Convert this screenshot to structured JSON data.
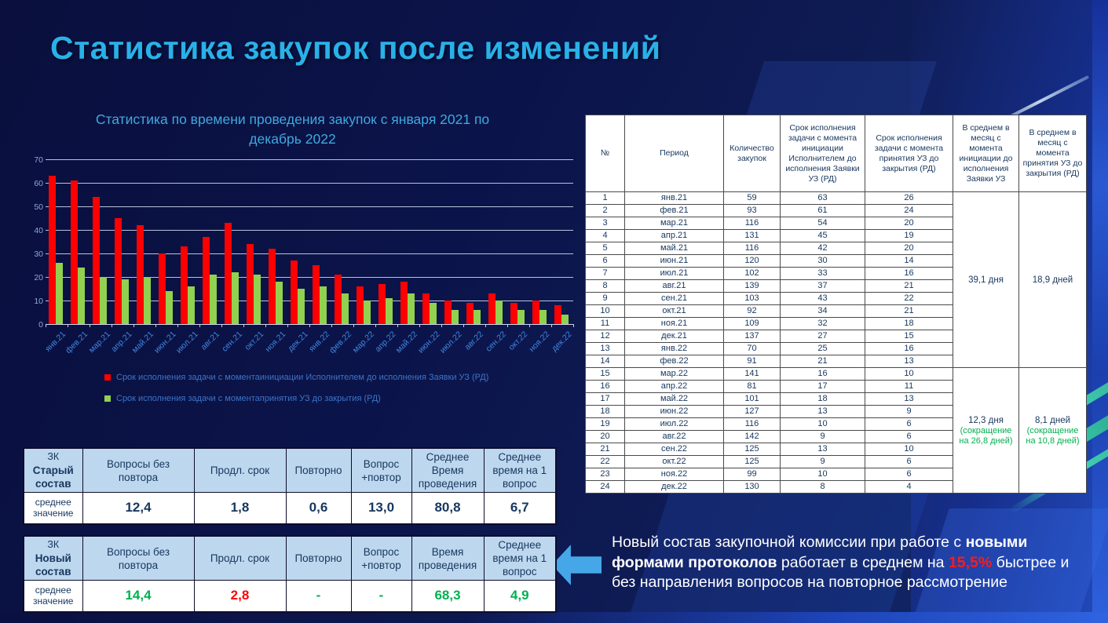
{
  "title": "Статистика закупок после изменений",
  "chart_data": {
    "type": "bar",
    "title": "Статистика по времени проведения закупок с января 2021 по декабрь 2022",
    "categories": [
      "янв.21",
      "фев.21",
      "мар.21",
      "апр.21",
      "май.21",
      "июн.21",
      "июл.21",
      "авг.21",
      "сен.21",
      "окт.21",
      "ноя.21",
      "дек.21",
      "янв.22",
      "фев.22",
      "мар.22",
      "апр.22",
      "май.22",
      "июн.22",
      "июл.22",
      "авг.22",
      "сен.22",
      "окт.22",
      "ноя.22",
      "дек.22"
    ],
    "series": [
      {
        "name": "Срок исполнения задачи с моментаинициации Исполнителем до исполнения Заявки УЗ (РД)",
        "color": "#FF0000",
        "values": [
          63,
          61,
          54,
          45,
          42,
          30,
          33,
          37,
          43,
          34,
          32,
          27,
          25,
          21,
          16,
          17,
          18,
          13,
          10,
          9,
          13,
          9,
          10,
          8
        ]
      },
      {
        "name": "Срок исполнения задачи с моментапринятия УЗ до закрытия (РД)",
        "color": "#92D050",
        "values": [
          26,
          24,
          20,
          19,
          20,
          14,
          16,
          21,
          22,
          21,
          18,
          15,
          16,
          13,
          10,
          11,
          13,
          9,
          6,
          6,
          10,
          6,
          6,
          4
        ]
      }
    ],
    "ylim": [
      0,
      70
    ],
    "yticks": [
      0,
      10,
      20,
      30,
      40,
      50,
      60,
      70
    ],
    "grid": true,
    "legend_position": "bottom"
  },
  "big_table": {
    "headers": [
      "№",
      "Период",
      "Количество закупок",
      "Срок исполнения задачи с момента инициации Исполнителем до исполнения Заявки УЗ (РД)",
      "Срок исполнения задачи с момента принятия УЗ до закрытия (РД)",
      "В среднем в месяц с момента инициации до исполнения Заявки УЗ",
      "В среднем в месяц с момента принятия УЗ до закрытия (РД)"
    ],
    "rows": [
      [
        1,
        "янв.21",
        59,
        63,
        26
      ],
      [
        2,
        "фев.21",
        93,
        61,
        24
      ],
      [
        3,
        "мар.21",
        116,
        54,
        20
      ],
      [
        4,
        "апр.21",
        131,
        45,
        19
      ],
      [
        5,
        "май.21",
        116,
        42,
        20
      ],
      [
        6,
        "июн.21",
        120,
        30,
        14
      ],
      [
        7,
        "июл.21",
        102,
        33,
        16
      ],
      [
        8,
        "авг.21",
        139,
        37,
        21
      ],
      [
        9,
        "сен.21",
        103,
        43,
        22
      ],
      [
        10,
        "окт.21",
        92,
        34,
        21
      ],
      [
        11,
        "ноя.21",
        109,
        32,
        18
      ],
      [
        12,
        "дек.21",
        137,
        27,
        15
      ],
      [
        13,
        "янв.22",
        70,
        25,
        16
      ],
      [
        14,
        "фев.22",
        91,
        21,
        13
      ],
      [
        15,
        "мар.22",
        141,
        16,
        10
      ],
      [
        16,
        "апр.22",
        81,
        17,
        11
      ],
      [
        17,
        "май.22",
        101,
        18,
        13
      ],
      [
        18,
        "июн.22",
        127,
        13,
        9
      ],
      [
        19,
        "июл.22",
        116,
        10,
        6
      ],
      [
        20,
        "авг.22",
        142,
        9,
        6
      ],
      [
        21,
        "сен.22",
        125,
        13,
        10
      ],
      [
        22,
        "окт.22",
        125,
        9,
        6
      ],
      [
        23,
        "ноя.22",
        99,
        10,
        6
      ],
      [
        24,
        "дек.22",
        130,
        8,
        4
      ]
    ],
    "merged": [
      {
        "start_row": 1,
        "span": 14,
        "avg_init": "39,1 дня",
        "note_init": "",
        "avg_accept": "18,9 дней",
        "note_accept": ""
      },
      {
        "start_row": 15,
        "span": 10,
        "avg_init": "12,3 дня",
        "note_init": "(сокращение на 26,8 дней)",
        "avg_accept": "8,1 дней",
        "note_accept": "(сокращение на 10,8 дней)"
      }
    ]
  },
  "summary_tables": [
    {
      "corner": [
        "ЗК",
        "Старый",
        "состав"
      ],
      "headers": [
        "Вопросы без повтора",
        "Продл. срок",
        "Повторно",
        "Вопрос +повтор",
        "Среднее Время проведения",
        "Среднее время на 1 вопрос"
      ],
      "row_label": "среднее значение",
      "values": [
        {
          "text": "12,4",
          "color": "navy"
        },
        {
          "text": "1,8",
          "color": "navy"
        },
        {
          "text": "0,6",
          "color": "navy"
        },
        {
          "text": "13,0",
          "color": "navy"
        },
        {
          "text": "80,8",
          "color": "navy"
        },
        {
          "text": "6,7",
          "color": "navy"
        }
      ]
    },
    {
      "corner": [
        "ЗК",
        "Новый",
        "состав"
      ],
      "headers": [
        "Вопросы без повтора",
        "Продл. срок",
        "Повторно",
        "Вопрос +повтор",
        "Время проведения",
        "Среднее время на 1 вопрос"
      ],
      "row_label": "среднее значение",
      "values": [
        {
          "text": "14,4",
          "color": "green"
        },
        {
          "text": "2,8",
          "color": "red"
        },
        {
          "text": "-",
          "color": "green"
        },
        {
          "text": "-",
          "color": "green"
        },
        {
          "text": "68,3",
          "color": "green"
        },
        {
          "text": "4,9",
          "color": "green"
        }
      ]
    }
  ],
  "callout": {
    "arrow_icon": "left-arrow",
    "segments": [
      {
        "text": "Новый состав закупочной комиссии при работе с ",
        "style": "normal"
      },
      {
        "text": "новыми формами протоколов",
        "style": "bold"
      },
      {
        "text": " работает в среднем на ",
        "style": "normal"
      },
      {
        "text": "15,5%",
        "style": "red"
      },
      {
        "text": " быстрее и без направления вопросов на повторное рассмотрение",
        "style": "normal"
      }
    ]
  },
  "colors": {
    "accent_title": "#29B1E8",
    "chart_title": "#3FA9DF",
    "bar_red": "#FF0000",
    "bar_green": "#92D050",
    "table_text": "#17375E",
    "positive_green": "#00B050",
    "negative_red": "#FF0000",
    "summary_header_bg": "#BDD7EE",
    "callout_arrow": "#45A7E8"
  }
}
